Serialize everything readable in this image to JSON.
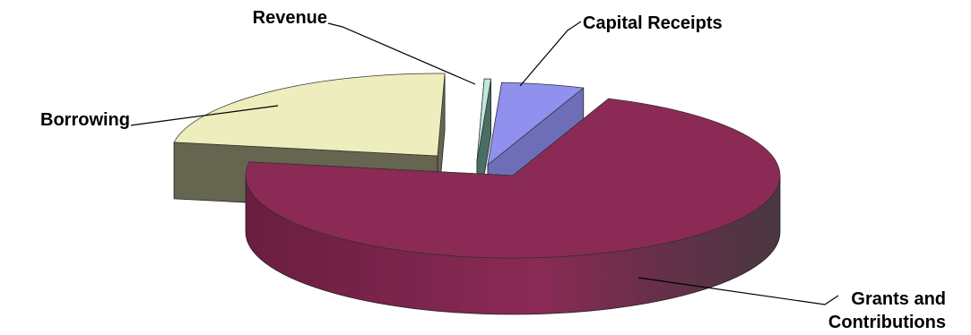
{
  "chart_data": {
    "type": "pie",
    "title": "",
    "exploded": true,
    "three_d": true,
    "slices": [
      {
        "name": "Capital Receipts",
        "value": 5,
        "label_lines": [
          "Capital Receipts"
        ],
        "color_top": "#9090ee",
        "color_side": "#6e6eb8"
      },
      {
        "name": "Grants and Contributions",
        "value": 71.8,
        "label_lines": [
          "Grants and",
          "Contributions"
        ],
        "color_top": "#8a2a55",
        "color_side": "#6a1e40"
      },
      {
        "name": "Borrowing",
        "value": 22.8,
        "label_lines": [
          "Borrowing"
        ],
        "color_top": "#ededbd",
        "color_side": "#666650"
      },
      {
        "name": "Revenue",
        "value": 0.4,
        "label_lines": [
          "Revenue"
        ],
        "color_top": "#bfe8df",
        "color_side": "#4a6e66"
      }
    ],
    "legend": "none",
    "labels": "outside-with-leader-lines"
  }
}
